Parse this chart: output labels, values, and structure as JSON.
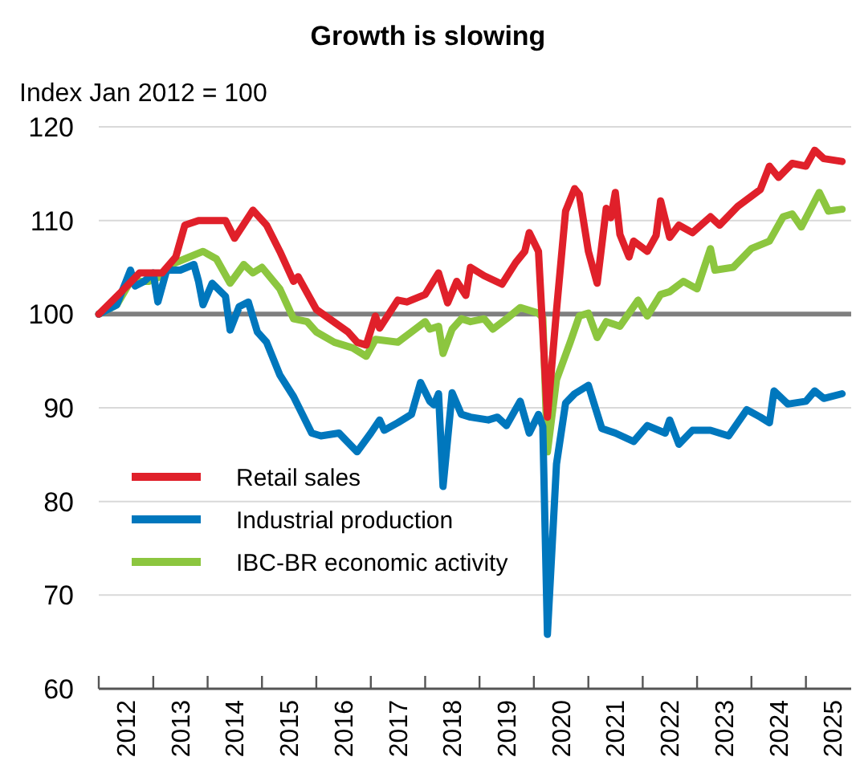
{
  "chart_data": {
    "type": "line",
    "title": "Growth is slowing",
    "ylabel": "Index Jan 2012 = 100",
    "xlim": [
      "2012-01",
      "2025-11"
    ],
    "xticks": [
      {
        "value": "2012-01",
        "label": null
      },
      {
        "value": "2012-07",
        "label": "2012"
      },
      {
        "value": "2013-01",
        "label": null
      },
      {
        "value": "2013-07",
        "label": "2013"
      },
      {
        "value": "2014-01",
        "label": null
      },
      {
        "value": "2014-07",
        "label": "2014"
      },
      {
        "value": "2015-01",
        "label": null
      },
      {
        "value": "2015-07",
        "label": "2015"
      },
      {
        "value": "2016-01",
        "label": null
      },
      {
        "value": "2016-07",
        "label": "2016"
      },
      {
        "value": "2017-01",
        "label": null
      },
      {
        "value": "2017-07",
        "label": "2017"
      },
      {
        "value": "2018-01",
        "label": null
      },
      {
        "value": "2018-07",
        "label": "2018"
      },
      {
        "value": "2019-01",
        "label": null
      },
      {
        "value": "2019-07",
        "label": "2019"
      },
      {
        "value": "2020-01",
        "label": null
      },
      {
        "value": "2020-07",
        "label": "2020"
      },
      {
        "value": "2021-01",
        "label": null
      },
      {
        "value": "2021-07",
        "label": "2021"
      },
      {
        "value": "2022-01",
        "label": null
      },
      {
        "value": "2022-07",
        "label": "2022"
      },
      {
        "value": "2023-01",
        "label": null
      },
      {
        "value": "2023-07",
        "label": "2023"
      },
      {
        "value": "2024-01",
        "label": null
      },
      {
        "value": "2024-07",
        "label": "2024"
      },
      {
        "value": "2025-01",
        "label": null
      },
      {
        "value": "2025-07",
        "label": "2025"
      }
    ],
    "ylim": [
      60,
      120
    ],
    "yticks": [
      60,
      70,
      80,
      90,
      100,
      110,
      120
    ],
    "grid": "y",
    "legend": "bottom left",
    "line_style": "solid",
    "ref_lines": [
      {
        "axis": "y",
        "value": 100,
        "label": null,
        "color": "#7f7f7f"
      }
    ],
    "series": [
      {
        "name": "Retail sales",
        "color": "#e0202a",
        "x": [
          "2012-01",
          "2012-06",
          "2012-10",
          "2013-03",
          "2013-06",
          "2013-08",
          "2013-11",
          "2014-05",
          "2014-07",
          "2014-11",
          "2015-02",
          "2015-05",
          "2015-08",
          "2015-09",
          "2016-01",
          "2016-08",
          "2016-10",
          "2016-12",
          "2017-02",
          "2017-03",
          "2017-07",
          "2017-09",
          "2018-01",
          "2018-04",
          "2018-06",
          "2018-08",
          "2018-10",
          "2018-11",
          "2019-02",
          "2019-06",
          "2019-09",
          "2019-11",
          "2019-12",
          "2020-02",
          "2020-04",
          "2020-06",
          "2020-08",
          "2020-10",
          "2020-11",
          "2021-01",
          "2021-03",
          "2021-05",
          "2021-06",
          "2021-07",
          "2021-08",
          "2021-10",
          "2021-11",
          "2022-02",
          "2022-04",
          "2022-05",
          "2022-07",
          "2022-09",
          "2022-12",
          "2023-04",
          "2023-06",
          "2023-10",
          "2024-03",
          "2024-05",
          "2024-07",
          "2024-10",
          "2025-01",
          "2025-03",
          "2025-05",
          "2025-09"
        ],
        "values": [
          100,
          102.4,
          104.4,
          104.4,
          106.1,
          109.5,
          110,
          110,
          108.1,
          111.1,
          109.5,
          106.7,
          103.5,
          104,
          100.5,
          98.1,
          97,
          96.7,
          99.8,
          98.5,
          101.5,
          101.3,
          102.1,
          104.4,
          101.2,
          103.5,
          102,
          105,
          104.1,
          103.2,
          105.5,
          106.7,
          108.7,
          106.7,
          89,
          100.4,
          111,
          113.4,
          112.8,
          106.7,
          103.3,
          111.3,
          110.3,
          113,
          108.5,
          106.1,
          107.8,
          106.7,
          108.4,
          112.1,
          108.2,
          109.5,
          108.7,
          110.4,
          109.5,
          111.5,
          113.3,
          115.8,
          114.6,
          116.1,
          115.8,
          117.5,
          116.6,
          116.3
        ]
      },
      {
        "name": "Industrial production",
        "color": "#0077bd",
        "x": [
          "2012-01",
          "2012-05",
          "2012-08",
          "2012-09",
          "2012-11",
          "2013-01",
          "2013-02",
          "2013-04",
          "2013-07",
          "2013-10",
          "2013-11",
          "2013-12",
          "2014-02",
          "2014-05",
          "2014-06",
          "2014-08",
          "2014-10",
          "2014-12",
          "2015-02",
          "2015-05",
          "2015-08",
          "2015-12",
          "2016-02",
          "2016-06",
          "2016-10",
          "2017-01",
          "2017-03",
          "2017-04",
          "2017-07",
          "2017-10",
          "2017-12",
          "2018-02",
          "2018-03",
          "2018-04",
          "2018-05",
          "2018-07",
          "2018-09",
          "2018-11",
          "2019-03",
          "2019-05",
          "2019-07",
          "2019-10",
          "2019-12",
          "2020-02",
          "2020-03",
          "2020-04",
          "2020-06",
          "2020-08",
          "2020-10",
          "2021-01",
          "2021-04",
          "2021-07",
          "2021-11",
          "2022-02",
          "2022-06",
          "2022-07",
          "2022-09",
          "2022-12",
          "2023-04",
          "2023-08",
          "2023-12",
          "2024-03",
          "2024-05",
          "2024-06",
          "2024-09",
          "2025-01",
          "2025-03",
          "2025-05",
          "2025-09"
        ],
        "values": [
          100,
          101,
          104.7,
          103,
          103.5,
          104.4,
          101.3,
          104.7,
          104.7,
          105.3,
          103.5,
          101,
          103.3,
          101.9,
          98.3,
          100.8,
          101.3,
          98.1,
          97,
          93.5,
          91.2,
          87.3,
          87,
          87.3,
          85.3,
          87.3,
          88.7,
          87.6,
          88.4,
          89.3,
          92.7,
          90.7,
          90.3,
          91.5,
          81.6,
          91.6,
          89.3,
          89,
          88.7,
          89,
          88.1,
          90.7,
          87.3,
          89.3,
          88,
          65.8,
          84,
          90.5,
          91.5,
          92.4,
          87.8,
          87.3,
          86.4,
          88.1,
          87.3,
          88.7,
          86.1,
          87.6,
          87.6,
          87,
          89.8,
          89,
          88.4,
          91.8,
          90.4,
          90.7,
          91.8,
          91,
          91.5
        ]
      },
      {
        "name": "IBC-BR economic activity",
        "color": "#8cc63f",
        "x": [
          "2012-01",
          "2012-05",
          "2012-08",
          "2012-12",
          "2013-03",
          "2013-05",
          "2013-08",
          "2013-12",
          "2014-03",
          "2014-06",
          "2014-09",
          "2014-11",
          "2015-01",
          "2015-05",
          "2015-08",
          "2015-11",
          "2016-01",
          "2016-05",
          "2016-09",
          "2016-12",
          "2017-02",
          "2017-07",
          "2018-01",
          "2018-02",
          "2018-04",
          "2018-05",
          "2018-07",
          "2018-09",
          "2018-11",
          "2019-02",
          "2019-04",
          "2019-07",
          "2019-10",
          "2020-02",
          "2020-03",
          "2020-04",
          "2020-06",
          "2020-09",
          "2020-11",
          "2021-01",
          "2021-03",
          "2021-05",
          "2021-08",
          "2021-10",
          "2021-12",
          "2022-02",
          "2022-05",
          "2022-07",
          "2022-10",
          "2023-01",
          "2023-04",
          "2023-05",
          "2023-09",
          "2024-01",
          "2024-05",
          "2024-08",
          "2024-10",
          "2024-12",
          "2025-04",
          "2025-06",
          "2025-09"
        ],
        "values": [
          100,
          101,
          103.5,
          103.5,
          104.1,
          105.3,
          105.9,
          106.7,
          105.9,
          103.3,
          105.3,
          104.4,
          105,
          102.7,
          99.5,
          99.2,
          98.1,
          97,
          96.4,
          95.5,
          97.3,
          97,
          99.2,
          98.4,
          98.7,
          95.8,
          98.4,
          99.5,
          99.2,
          99.5,
          98.4,
          99.5,
          100.7,
          100.1,
          99.6,
          85.3,
          93,
          97,
          99.8,
          100.1,
          97.5,
          99.2,
          98.7,
          100.1,
          101.5,
          99.8,
          102.1,
          102.4,
          103.5,
          102.7,
          107,
          104.7,
          105,
          107,
          107.8,
          110.4,
          110.7,
          109.3,
          113,
          111,
          111.2
        ]
      }
    ]
  }
}
